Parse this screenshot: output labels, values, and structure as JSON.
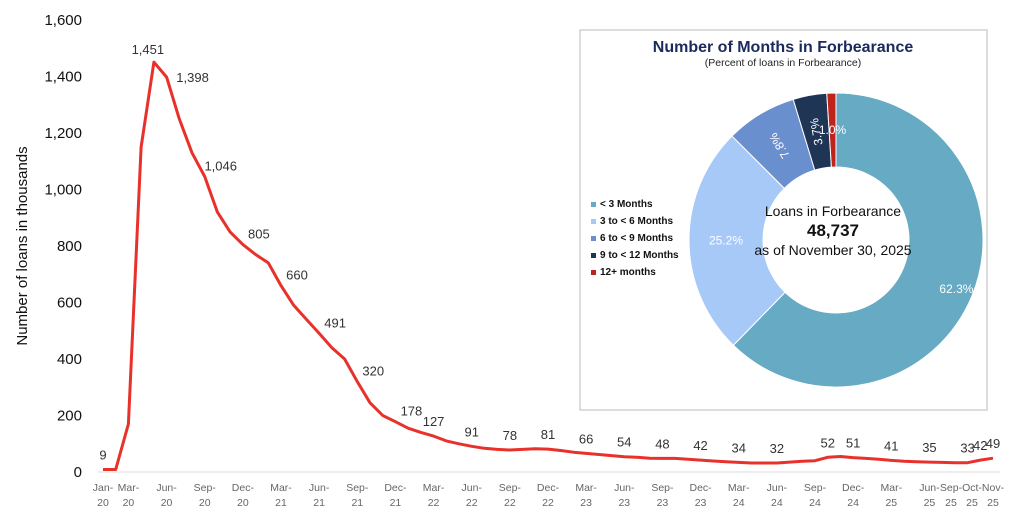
{
  "chart_data": [
    {
      "type": "line",
      "ylabel": "Number of loans in thousands",
      "ylim": [
        0,
        1600
      ],
      "yticks": [
        0,
        200,
        400,
        600,
        800,
        1000,
        1200,
        1400,
        1600
      ],
      "ytick_labels": [
        "0",
        "200",
        "400",
        "600",
        "800",
        "1,000",
        "1,200",
        "1,400",
        "1,600"
      ],
      "x_start": "Jan-20",
      "x_end": "Nov-25",
      "values": [
        9,
        9,
        170,
        1150,
        1451,
        1398,
        1250,
        1130,
        1046,
        920,
        850,
        805,
        770,
        740,
        660,
        590,
        540,
        491,
        440,
        400,
        320,
        245,
        200,
        178,
        155,
        140,
        127,
        110,
        100,
        91,
        84,
        80,
        78,
        80,
        82,
        81,
        76,
        70,
        66,
        62,
        58,
        54,
        52,
        49,
        48,
        48,
        45,
        42,
        39,
        36,
        34,
        32,
        32,
        32,
        35,
        38,
        40,
        52,
        55,
        51,
        48,
        45,
        41,
        38,
        36,
        35,
        34,
        33,
        33,
        42,
        49
      ],
      "xtick_labels": [
        {
          "i": 0,
          "l1": "Jan-",
          "l2": "20"
        },
        {
          "i": 2,
          "l1": "Mar-",
          "l2": "20"
        },
        {
          "i": 5,
          "l1": "Jun-",
          "l2": "20"
        },
        {
          "i": 8,
          "l1": "Sep-",
          "l2": "20"
        },
        {
          "i": 11,
          "l1": "Dec-",
          "l2": "20"
        },
        {
          "i": 14,
          "l1": "Mar-",
          "l2": "21"
        },
        {
          "i": 17,
          "l1": "Jun-",
          "l2": "21"
        },
        {
          "i": 20,
          "l1": "Sep-",
          "l2": "21"
        },
        {
          "i": 23,
          "l1": "Dec-",
          "l2": "21"
        },
        {
          "i": 26,
          "l1": "Mar-",
          "l2": "22"
        },
        {
          "i": 29,
          "l1": "Jun-",
          "l2": "22"
        },
        {
          "i": 32,
          "l1": "Sep-",
          "l2": "22"
        },
        {
          "i": 35,
          "l1": "Dec-",
          "l2": "22"
        },
        {
          "i": 38,
          "l1": "Mar-",
          "l2": "23"
        },
        {
          "i": 41,
          "l1": "Jun-",
          "l2": "23"
        },
        {
          "i": 44,
          "l1": "Sep-",
          "l2": "23"
        },
        {
          "i": 47,
          "l1": "Dec-",
          "l2": "23"
        },
        {
          "i": 50,
          "l1": "Mar-",
          "l2": "24"
        },
        {
          "i": 53,
          "l1": "Jun-",
          "l2": "24"
        },
        {
          "i": 56,
          "l1": "Sep-",
          "l2": "24"
        },
        {
          "i": 59,
          "l1": "Dec-",
          "l2": "24"
        },
        {
          "i": 62,
          "l1": "Mar-",
          "l2": "25"
        },
        {
          "i": 65,
          "l1": "Jun-",
          "l2": "25"
        },
        {
          "i": 68,
          "l1": "Sep-",
          "l2": "25"
        },
        {
          "i": 69,
          "l1": "Oct-",
          "l2": "25"
        },
        {
          "i": 70,
          "l1": "Nov-",
          "l2": "25"
        }
      ],
      "data_labels": [
        {
          "i": 0,
          "text": "9"
        },
        {
          "i": 4,
          "text": "1,451"
        },
        {
          "i": 5,
          "text": "1,398"
        },
        {
          "i": 8,
          "text": "1,046"
        },
        {
          "i": 11,
          "text": "805"
        },
        {
          "i": 14,
          "text": "660"
        },
        {
          "i": 17,
          "text": "491"
        },
        {
          "i": 20,
          "text": "320"
        },
        {
          "i": 23,
          "text": "178"
        },
        {
          "i": 26,
          "text": "127"
        },
        {
          "i": 29,
          "text": "91"
        },
        {
          "i": 32,
          "text": "78"
        },
        {
          "i": 35,
          "text": "81"
        },
        {
          "i": 38,
          "text": "66"
        },
        {
          "i": 41,
          "text": "54"
        },
        {
          "i": 44,
          "text": "48"
        },
        {
          "i": 47,
          "text": "42"
        },
        {
          "i": 50,
          "text": "34"
        },
        {
          "i": 53,
          "text": "32"
        },
        {
          "i": 57,
          "text": "52"
        },
        {
          "i": 59,
          "text": "51"
        },
        {
          "i": 62,
          "text": "41"
        },
        {
          "i": 65,
          "text": "35"
        },
        {
          "i": 68,
          "text": "33"
        },
        {
          "i": 69,
          "text": "42"
        },
        {
          "i": 70,
          "text": "49"
        }
      ],
      "line_color": "#e8312a"
    },
    {
      "type": "pie",
      "title": "Number of Months in Forbearance",
      "subtitle": "(Percent of loans in Forbearance)",
      "center_text": [
        "Loans in Forbearance",
        "48,737",
        "as of November 30, 2025"
      ],
      "legend_position": "left",
      "slices": [
        {
          "label": "< 3 Months",
          "value": 62.3,
          "text": "62.3%",
          "color": "#67aac4"
        },
        {
          "label": "3 to < 6 Months",
          "value": 25.2,
          "text": "25.2%",
          "color": "#a6c9f8"
        },
        {
          "label": "6 to < 9 Months",
          "value": 7.8,
          "text": "7.8%",
          "color": "#6a8fcf"
        },
        {
          "label": "9 to < 12 Months",
          "value": 3.7,
          "text": "3.7%",
          "color": "#1f3556"
        },
        {
          "label": "12+ months",
          "value": 1.0,
          "text": "1.0%",
          "color": "#c0221c"
        }
      ]
    }
  ]
}
